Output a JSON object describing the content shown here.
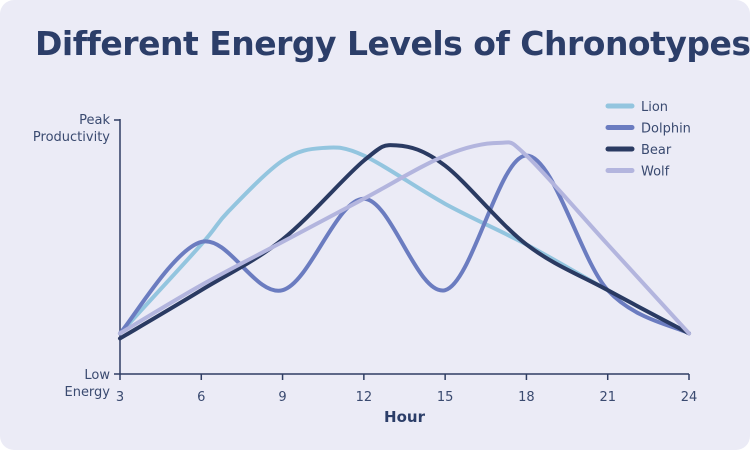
{
  "chart_data": {
    "type": "line",
    "title": "Different Energy Levels of Chronotypes",
    "xlabel": "Hour",
    "ylabel": "",
    "x_ticks": [
      3,
      6,
      9,
      12,
      15,
      18,
      21,
      24
    ],
    "xlim": [
      3,
      24
    ],
    "ylim": [
      0,
      100
    ],
    "y_tick_labels": [
      {
        "value": 100,
        "lines": [
          "Peak",
          "Productivity"
        ]
      },
      {
        "value": 0,
        "lines": [
          "Low",
          "Energy"
        ]
      }
    ],
    "grid": false,
    "legend_position": "top-right",
    "series": [
      {
        "name": "Lion",
        "color": "#93c5df",
        "x": [
          3,
          6,
          7,
          9,
          10.5,
          12,
          15,
          18,
          21,
          24
        ],
        "values": [
          16,
          51,
          64,
          84,
          89,
          86,
          67,
          51,
          33,
          16
        ]
      },
      {
        "name": "Dolphin",
        "color": "#6b7cc0",
        "x": [
          3,
          6,
          9,
          12,
          15,
          18,
          21,
          24
        ],
        "values": [
          16,
          52,
          33,
          69,
          33,
          86,
          33,
          16
        ]
      },
      {
        "name": "Bear",
        "color": "#2a3a62",
        "x": [
          3,
          6,
          9,
          12,
          13.2,
          15,
          18,
          21,
          24
        ],
        "values": [
          14,
          33,
          53,
          84,
          90,
          82,
          51,
          33,
          16
        ]
      },
      {
        "name": "Wolf",
        "color": "#b3b5de",
        "x": [
          3,
          6,
          9,
          12,
          15,
          17,
          18,
          21,
          24
        ],
        "values": [
          16,
          35,
          52,
          69,
          86,
          91,
          86,
          51,
          16
        ]
      }
    ]
  }
}
